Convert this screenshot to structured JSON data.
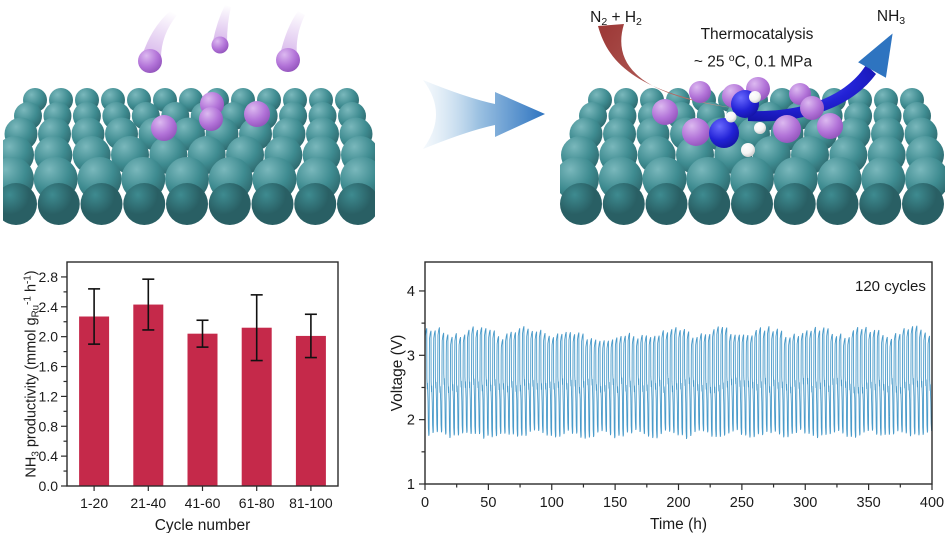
{
  "illustration": {
    "process": "Thermocatalysis",
    "reactants_parts": [
      {
        "t": "N"
      },
      {
        "t": "2",
        "sub": true
      },
      {
        "t": " + H"
      },
      {
        "t": "2",
        "sub": true
      }
    ],
    "conditions_parts": [
      {
        "t": "~ 25 "
      },
      {
        "t": "o",
        "sup": true
      },
      {
        "t": "C, 0.1 MPa"
      }
    ],
    "product_parts": [
      {
        "t": "NH"
      },
      {
        "t": "3",
        "sub": true
      }
    ],
    "left_panel": "pristine catalyst surface with depositing atoms",
    "right_panel": "catalyst surface during ammonia synthesis"
  },
  "colors": {
    "teal": "#3e8b90",
    "teal_light": "#7ab8bc",
    "teal_dark": "#295f64",
    "purple": "#b273d8",
    "purple_light": "#dcb9f0",
    "purple_dark": "#8a4cb4",
    "blue_atom": "#2222d6",
    "blue_atom_light": "#6a6aff",
    "blue_atom_dark": "#10109a",
    "white_atom": "#f4f4f4",
    "white_atom_dark": "#bdbdbd",
    "red_arrow": "#9e3b39",
    "red_arrow_tip": "#cfa09a",
    "blue_arrow": "#2e74c0",
    "blue_arrow_pale": "#d5e6f4",
    "bar": "#c5294a",
    "trace": "#4a9bca",
    "axis": "#2b2b2b",
    "text": "#1a1a1a"
  },
  "chart_data": [
    {
      "type": "bar",
      "title": "",
      "categories": [
        "1-20",
        "21-40",
        "41-60",
        "61-80",
        "81-100"
      ],
      "values": [
        2.27,
        2.43,
        2.04,
        2.12,
        2.01
      ],
      "error_bars": [
        0.37,
        0.34,
        0.18,
        0.44,
        0.29
      ],
      "xlabel": "Cycle number",
      "ylabel": "NH3 productivity (mmol gRu-1 h-1)",
      "ylabel_parts": [
        {
          "t": "NH"
        },
        {
          "t": "3",
          "sub": true
        },
        {
          "t": " productivity (mmol g"
        },
        {
          "t": "Ru",
          "sub": true
        },
        {
          "t": "-1",
          "sup": true
        },
        {
          "t": " h"
        },
        {
          "t": "-1",
          "sup": true
        },
        {
          "t": ")"
        }
      ],
      "ylim": [
        0,
        3.0
      ],
      "yticks": [
        "0.0",
        "0.4",
        "0.8",
        "1.2",
        "1.6",
        "2.0",
        "2.4",
        "2.8"
      ],
      "ytick_minor_step": 0.2,
      "grid": false,
      "bar_color": "#c5294a"
    },
    {
      "type": "line",
      "title": "",
      "xlabel": "Time (h)",
      "ylabel": "Voltage (V)",
      "xlim": [
        0,
        400
      ],
      "ylim": [
        1,
        4.45
      ],
      "xticks": [
        0,
        50,
        100,
        150,
        200,
        250,
        300,
        350,
        400
      ],
      "yticks": [
        1,
        2,
        3,
        4
      ],
      "x_minor_step": 25,
      "y_minor_step": 0.5,
      "annotation": "120 cycles",
      "grid": false,
      "line_color": "#4a9bca",
      "series": [
        {
          "name": "charge-discharge cycling voltage",
          "cycles": 120,
          "time_span_h": 400,
          "v_charge_peak_V": 3.4,
          "v_discharge_min_V": 1.75,
          "v_mid_charge_V": 2.6,
          "v_mid_discharge_V": 2.3
        }
      ]
    }
  ]
}
